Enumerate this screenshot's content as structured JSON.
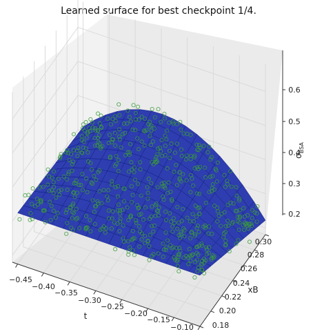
{
  "chart_data": {
    "type": "scatter",
    "title": "Learned surface for best checkpoint 1/4.",
    "xlabel": "t",
    "ylabel": "xB",
    "zlabel": "σ_BSA",
    "zlabel_main": "σ",
    "zlabel_sub": "BSA",
    "x_ticks": [
      "−0.45",
      "−0.40",
      "−0.35",
      "−0.30",
      "−0.25",
      "−0.20",
      "−0.15",
      "−0.10"
    ],
    "y_ticks": [
      "0.18",
      "0.20",
      "0.22",
      "0.24",
      "0.26",
      "0.28",
      "0.30"
    ],
    "z_ticks": [
      "0.2",
      "0.3",
      "0.4",
      "0.5",
      "0.6"
    ],
    "xlim": [
      -0.46,
      -0.1
    ],
    "ylim": [
      0.18,
      0.3
    ],
    "zlim": [
      0.18,
      0.68
    ],
    "grid": true,
    "surface_color": "#1a2aa8",
    "surface_edge_color": "#0b1a7a",
    "point_color": "#3a9a3a",
    "surface": {
      "description_model": "sigma increases with xB and peaks around t≈-0.30",
      "t_range": [
        -0.45,
        -0.1
      ],
      "xB_range": [
        0.18,
        0.3
      ]
    },
    "n_points": 600
  }
}
